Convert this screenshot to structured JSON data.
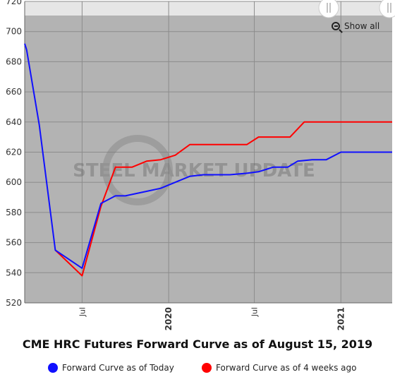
{
  "title": "CME HRC Futures Forward Curve as of August 15, 2019",
  "show_all_label": "Show all",
  "watermark": "STEEL MARKET UPDATE",
  "legend": [
    {
      "label": "Forward Curve as of Today",
      "color": "#1010ff"
    },
    {
      "label": "Forward Curve as of 4 weeks ago",
      "color": "#ff0000"
    }
  ],
  "colors": {
    "plot_bg": "#b3b3b3",
    "grid": "#8c8c8c",
    "today": "#1010ff",
    "weeks_ago": "#ff0000"
  },
  "chart_data": {
    "type": "line",
    "ylim": [
      520,
      720
    ],
    "yticks": [
      520,
      540,
      560,
      580,
      600,
      620,
      640,
      660,
      680,
      700,
      720
    ],
    "xlim": [
      "2019-03-01",
      "2021-04-20"
    ],
    "xticks": [
      {
        "label": "Jul",
        "date": "2019-07-01",
        "bold": false
      },
      {
        "label": "2020",
        "date": "2020-01-01",
        "bold": true
      },
      {
        "label": "Jul",
        "date": "2020-07-01",
        "bold": false
      },
      {
        "label": "2021",
        "date": "2021-01-01",
        "bold": true
      }
    ],
    "series": [
      {
        "name": "Forward Curve as of Today",
        "color": "#1010ff",
        "points": [
          [
            "2019-03-01",
            692
          ],
          [
            "2019-03-05",
            688
          ],
          [
            "2019-04-01",
            638
          ],
          [
            "2019-05-05",
            555
          ],
          [
            "2019-07-01",
            543
          ],
          [
            "2019-08-10",
            586
          ],
          [
            "2019-09-10",
            591
          ],
          [
            "2019-10-01",
            591
          ],
          [
            "2019-11-15",
            594
          ],
          [
            "2019-12-15",
            596
          ],
          [
            "2020-01-15",
            600
          ],
          [
            "2020-02-15",
            604
          ],
          [
            "2020-03-15",
            605
          ],
          [
            "2020-05-10",
            605
          ],
          [
            "2020-06-15",
            606
          ],
          [
            "2020-07-10",
            607
          ],
          [
            "2020-08-10",
            610
          ],
          [
            "2020-09-10",
            610
          ],
          [
            "2020-10-01",
            614
          ],
          [
            "2020-11-01",
            615
          ],
          [
            "2020-12-01",
            615
          ],
          [
            "2021-01-01",
            620
          ],
          [
            "2021-04-20",
            620
          ]
        ]
      },
      {
        "name": "Forward Curve as of 4 weeks ago",
        "color": "#ff0000",
        "points": [
          [
            "2019-05-05",
            555
          ],
          [
            "2019-07-01",
            538
          ],
          [
            "2019-08-10",
            584
          ],
          [
            "2019-09-10",
            610
          ],
          [
            "2019-10-15",
            610
          ],
          [
            "2019-11-15",
            614
          ],
          [
            "2019-12-15",
            615
          ],
          [
            "2020-01-15",
            618
          ],
          [
            "2020-02-15",
            625
          ],
          [
            "2020-03-15",
            625
          ],
          [
            "2020-05-10",
            625
          ],
          [
            "2020-06-15",
            625
          ],
          [
            "2020-07-10",
            630
          ],
          [
            "2020-08-10",
            630
          ],
          [
            "2020-09-15",
            630
          ],
          [
            "2020-10-15",
            640
          ],
          [
            "2020-12-01",
            640
          ],
          [
            "2021-01-01",
            640
          ],
          [
            "2021-04-20",
            640
          ]
        ]
      }
    ]
  }
}
